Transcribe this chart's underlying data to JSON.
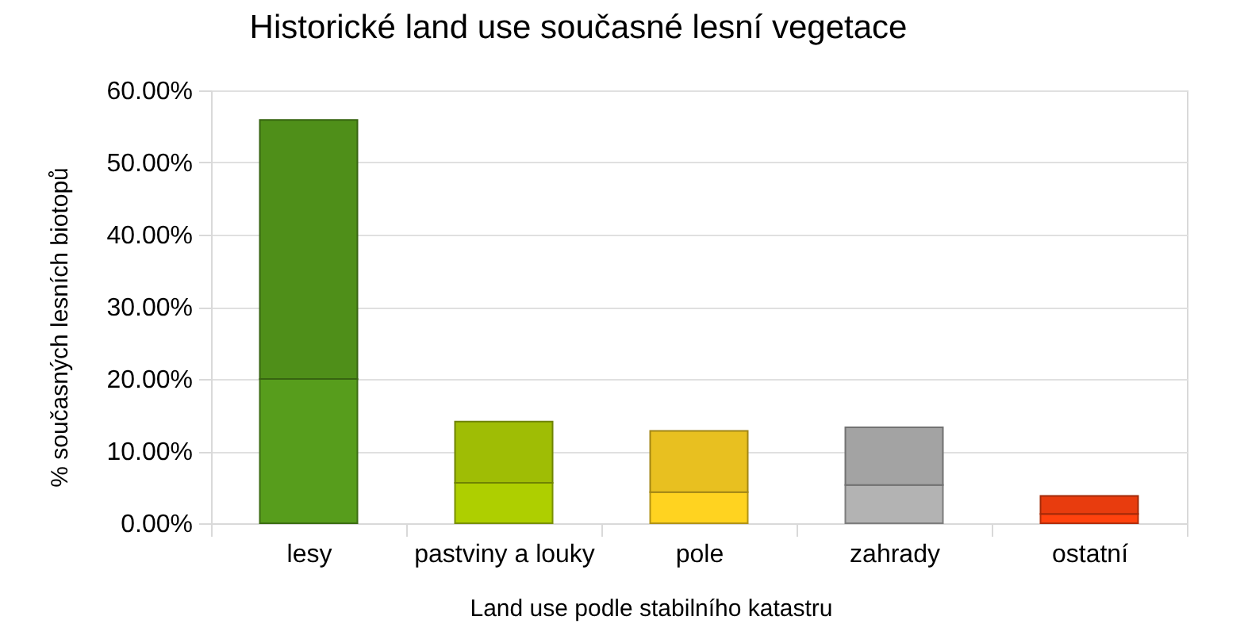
{
  "chart_data": {
    "type": "bar",
    "title": "Historické land use současné lesní vegetace",
    "xlabel": "Land use podle stabilního katastru",
    "ylabel": "% současných lesních biotopů",
    "categories": [
      "lesy",
      "pastviny a louky",
      "pole",
      "zahrady",
      "ostatní"
    ],
    "stacked": true,
    "series": [
      {
        "colors": [
          "#579d1c",
          "#aecf00",
          "#ffd320",
          "#b3b3b3",
          "#ff420e"
        ],
        "values": [
          20.0,
          5.6,
          4.3,
          5.3,
          1.3
        ]
      },
      {
        "colors": [
          "#4f8f19",
          "#9fbd05",
          "#e8c020",
          "#a3a3a3",
          "#e83c0e"
        ],
        "values": [
          35.9,
          8.5,
          8.5,
          8.0,
          2.5
        ]
      }
    ],
    "ylim": [
      0,
      60
    ],
    "yticks": [
      {
        "value": 0,
        "label": "0.00%"
      },
      {
        "value": 10,
        "label": "10.00%"
      },
      {
        "value": 20,
        "label": "20.00%"
      },
      {
        "value": 30,
        "label": "30.00%"
      },
      {
        "value": 40,
        "label": "40.00%"
      },
      {
        "value": 50,
        "label": "50.00%"
      },
      {
        "value": 60,
        "label": "60.00%"
      }
    ],
    "grid": "y"
  }
}
